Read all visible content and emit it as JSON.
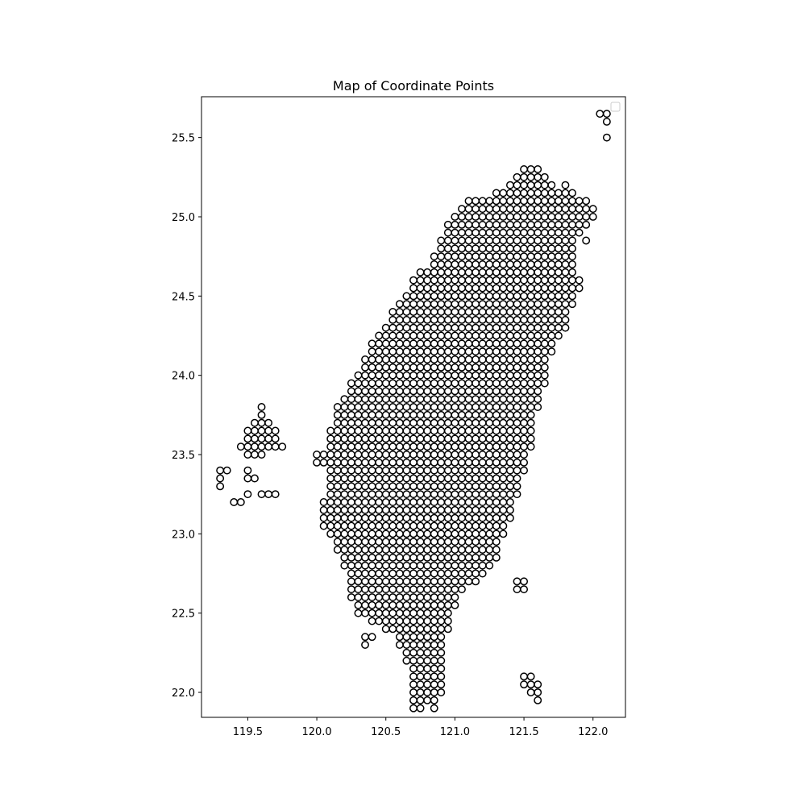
{
  "chart_data": {
    "type": "scatter",
    "title": "Map of Coordinate Points",
    "xlabel": "",
    "ylabel": "",
    "xlim": [
      119.165,
      122.235
    ],
    "ylim": [
      21.8425,
      25.7575
    ],
    "xticks": [
      119.5,
      120.0,
      120.5,
      121.0,
      121.5,
      122.0
    ],
    "xtick_labels": [
      "119.5",
      "120.0",
      "120.5",
      "121.0",
      "121.5",
      "122.0"
    ],
    "yticks": [
      22.0,
      22.5,
      23.0,
      23.5,
      24.0,
      24.5,
      25.0,
      25.5
    ],
    "ytick_labels": [
      "22.0",
      "22.5",
      "23.0",
      "23.5",
      "24.0",
      "24.5",
      "25.0",
      "25.5"
    ],
    "grid": false,
    "legend": {
      "position": "upper right",
      "entries": []
    },
    "marker": {
      "shape": "circle",
      "face_color": "#ffffff",
      "edge_color": "#000000"
    },
    "grid_step": 0.05,
    "rows": [
      {
        "y": 25.65,
        "x_ranges": [
          [
            122.05,
            122.1
          ]
        ]
      },
      {
        "y": 25.6,
        "x_ranges": [
          [
            122.1,
            122.1
          ]
        ]
      },
      {
        "y": 25.5,
        "x_ranges": [
          [
            122.1,
            122.1
          ]
        ]
      },
      {
        "y": 25.3,
        "x_ranges": [
          [
            121.5,
            121.6
          ]
        ]
      },
      {
        "y": 25.25,
        "x_ranges": [
          [
            121.45,
            121.65
          ]
        ]
      },
      {
        "y": 25.2,
        "x_ranges": [
          [
            121.4,
            121.7
          ],
          [
            121.8,
            121.8
          ]
        ]
      },
      {
        "y": 25.15,
        "x_ranges": [
          [
            121.3,
            121.85
          ]
        ]
      },
      {
        "y": 25.1,
        "x_ranges": [
          [
            121.1,
            121.95
          ]
        ]
      },
      {
        "y": 25.05,
        "x_ranges": [
          [
            121.05,
            122.0
          ]
        ]
      },
      {
        "y": 25.0,
        "x_ranges": [
          [
            121.0,
            122.0
          ]
        ]
      },
      {
        "y": 24.95,
        "x_ranges": [
          [
            120.95,
            121.95
          ]
        ]
      },
      {
        "y": 24.9,
        "x_ranges": [
          [
            120.95,
            121.9
          ]
        ]
      },
      {
        "y": 24.85,
        "x_ranges": [
          [
            120.9,
            121.85
          ],
          [
            121.95,
            121.95
          ]
        ]
      },
      {
        "y": 24.8,
        "x_ranges": [
          [
            120.9,
            121.85
          ]
        ]
      },
      {
        "y": 24.75,
        "x_ranges": [
          [
            120.85,
            121.85
          ]
        ]
      },
      {
        "y": 24.7,
        "x_ranges": [
          [
            120.85,
            121.85
          ]
        ]
      },
      {
        "y": 24.65,
        "x_ranges": [
          [
            120.75,
            121.85
          ]
        ]
      },
      {
        "y": 24.6,
        "x_ranges": [
          [
            120.7,
            121.9
          ]
        ]
      },
      {
        "y": 24.55,
        "x_ranges": [
          [
            120.7,
            121.9
          ]
        ]
      },
      {
        "y": 24.5,
        "x_ranges": [
          [
            120.65,
            121.85
          ]
        ]
      },
      {
        "y": 24.45,
        "x_ranges": [
          [
            120.6,
            121.85
          ]
        ]
      },
      {
        "y": 24.4,
        "x_ranges": [
          [
            120.55,
            121.8
          ]
        ]
      },
      {
        "y": 24.35,
        "x_ranges": [
          [
            120.55,
            121.8
          ]
        ]
      },
      {
        "y": 24.3,
        "x_ranges": [
          [
            120.5,
            121.8
          ]
        ]
      },
      {
        "y": 24.25,
        "x_ranges": [
          [
            120.45,
            121.75
          ]
        ]
      },
      {
        "y": 24.2,
        "x_ranges": [
          [
            120.4,
            121.7
          ]
        ]
      },
      {
        "y": 24.15,
        "x_ranges": [
          [
            120.4,
            121.7
          ]
        ]
      },
      {
        "y": 24.1,
        "x_ranges": [
          [
            120.35,
            121.65
          ]
        ]
      },
      {
        "y": 24.05,
        "x_ranges": [
          [
            120.35,
            121.65
          ]
        ]
      },
      {
        "y": 24.0,
        "x_ranges": [
          [
            120.3,
            121.65
          ]
        ]
      },
      {
        "y": 23.95,
        "x_ranges": [
          [
            120.25,
            121.65
          ]
        ]
      },
      {
        "y": 23.9,
        "x_ranges": [
          [
            120.25,
            121.6
          ]
        ]
      },
      {
        "y": 23.85,
        "x_ranges": [
          [
            120.2,
            121.6
          ]
        ]
      },
      {
        "y": 23.8,
        "x_ranges": [
          [
            119.6,
            119.6
          ],
          [
            120.15,
            121.6
          ]
        ]
      },
      {
        "y": 23.75,
        "x_ranges": [
          [
            119.6,
            119.6
          ],
          [
            120.15,
            121.55
          ]
        ]
      },
      {
        "y": 23.7,
        "x_ranges": [
          [
            119.55,
            119.65
          ],
          [
            120.15,
            121.55
          ]
        ]
      },
      {
        "y": 23.65,
        "x_ranges": [
          [
            119.5,
            119.7
          ],
          [
            120.1,
            121.55
          ]
        ]
      },
      {
        "y": 23.6,
        "x_ranges": [
          [
            119.5,
            119.7
          ],
          [
            120.1,
            121.55
          ]
        ]
      },
      {
        "y": 23.55,
        "x_ranges": [
          [
            119.45,
            119.75
          ],
          [
            120.1,
            121.55
          ]
        ]
      },
      {
        "y": 23.5,
        "x_ranges": [
          [
            119.5,
            119.6
          ],
          [
            120.0,
            121.5
          ]
        ]
      },
      {
        "y": 23.45,
        "x_ranges": [
          [
            120.0,
            121.5
          ]
        ]
      },
      {
        "y": 23.4,
        "x_ranges": [
          [
            119.3,
            119.35
          ],
          [
            119.5,
            119.5
          ],
          [
            120.1,
            121.5
          ]
        ]
      },
      {
        "y": 23.35,
        "x_ranges": [
          [
            119.3,
            119.3
          ],
          [
            119.5,
            119.55
          ],
          [
            120.1,
            121.45
          ]
        ]
      },
      {
        "y": 23.3,
        "x_ranges": [
          [
            119.3,
            119.3
          ],
          [
            120.1,
            121.45
          ]
        ]
      },
      {
        "y": 23.25,
        "x_ranges": [
          [
            119.5,
            119.5
          ],
          [
            119.6,
            119.7
          ],
          [
            120.1,
            121.45
          ]
        ]
      },
      {
        "y": 23.2,
        "x_ranges": [
          [
            119.4,
            119.45
          ],
          [
            120.05,
            121.4
          ]
        ]
      },
      {
        "y": 23.15,
        "x_ranges": [
          [
            120.05,
            121.4
          ]
        ]
      },
      {
        "y": 23.1,
        "x_ranges": [
          [
            120.05,
            121.4
          ]
        ]
      },
      {
        "y": 23.05,
        "x_ranges": [
          [
            120.05,
            121.35
          ]
        ]
      },
      {
        "y": 23.0,
        "x_ranges": [
          [
            120.1,
            121.35
          ]
        ]
      },
      {
        "y": 22.95,
        "x_ranges": [
          [
            120.15,
            121.3
          ]
        ]
      },
      {
        "y": 22.9,
        "x_ranges": [
          [
            120.15,
            121.3
          ]
        ]
      },
      {
        "y": 22.85,
        "x_ranges": [
          [
            120.2,
            121.3
          ]
        ]
      },
      {
        "y": 22.8,
        "x_ranges": [
          [
            120.2,
            121.25
          ]
        ]
      },
      {
        "y": 22.75,
        "x_ranges": [
          [
            120.25,
            121.2
          ]
        ]
      },
      {
        "y": 22.7,
        "x_ranges": [
          [
            120.25,
            121.15
          ],
          [
            121.45,
            121.5
          ]
        ]
      },
      {
        "y": 22.65,
        "x_ranges": [
          [
            120.25,
            121.05
          ],
          [
            121.45,
            121.5
          ]
        ]
      },
      {
        "y": 22.6,
        "x_ranges": [
          [
            120.25,
            121.0
          ]
        ]
      },
      {
        "y": 22.55,
        "x_ranges": [
          [
            120.3,
            121.0
          ]
        ]
      },
      {
        "y": 22.5,
        "x_ranges": [
          [
            120.3,
            120.95
          ]
        ]
      },
      {
        "y": 22.45,
        "x_ranges": [
          [
            120.4,
            120.95
          ]
        ]
      },
      {
        "y": 22.4,
        "x_ranges": [
          [
            120.5,
            120.95
          ]
        ]
      },
      {
        "y": 22.35,
        "x_ranges": [
          [
            120.35,
            120.4
          ],
          [
            120.6,
            120.9
          ]
        ]
      },
      {
        "y": 22.3,
        "x_ranges": [
          [
            120.35,
            120.35
          ],
          [
            120.6,
            120.9
          ]
        ]
      },
      {
        "y": 22.25,
        "x_ranges": [
          [
            120.65,
            120.9
          ]
        ]
      },
      {
        "y": 22.2,
        "x_ranges": [
          [
            120.65,
            120.9
          ]
        ]
      },
      {
        "y": 22.15,
        "x_ranges": [
          [
            120.7,
            120.9
          ]
        ]
      },
      {
        "y": 22.1,
        "x_ranges": [
          [
            120.7,
            120.9
          ],
          [
            121.5,
            121.55
          ]
        ]
      },
      {
        "y": 22.05,
        "x_ranges": [
          [
            120.7,
            120.9
          ],
          [
            121.5,
            121.6
          ]
        ]
      },
      {
        "y": 22.0,
        "x_ranges": [
          [
            120.7,
            120.9
          ],
          [
            121.55,
            121.6
          ]
        ]
      },
      {
        "y": 21.95,
        "x_ranges": [
          [
            120.7,
            120.85
          ],
          [
            121.6,
            121.6
          ]
        ]
      },
      {
        "y": 21.9,
        "x_ranges": [
          [
            120.7,
            120.75
          ],
          [
            120.85,
            120.85
          ]
        ]
      }
    ]
  }
}
